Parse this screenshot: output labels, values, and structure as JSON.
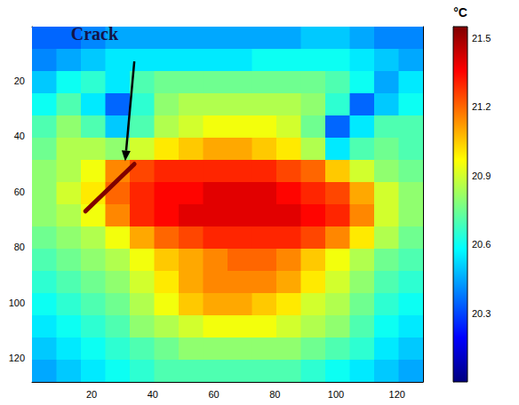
{
  "chart_data": {
    "type": "heatmap",
    "xlim": [
      0.5,
      128.5
    ],
    "xticks": [
      20,
      40,
      60,
      80,
      100,
      120
    ],
    "ylim": [
      128.5,
      0.5
    ],
    "yticks": [
      20,
      40,
      60,
      80,
      100,
      120
    ],
    "cells": {
      "x_edges": [
        0.5,
        8.5,
        16.5,
        24.5,
        32.5,
        40.5,
        48.5,
        56.5,
        64.5,
        72.5,
        80.5,
        88.5,
        96.5,
        104.5,
        112.5,
        120.5,
        128.5
      ],
      "y_edges": [
        0.5,
        8.5,
        16.5,
        24.5,
        32.5,
        40.5,
        48.5,
        56.5,
        64.5,
        72.5,
        80.5,
        88.5,
        96.5,
        104.5,
        112.5,
        120.5,
        128.5
      ],
      "values": [
        [
          20.35,
          20.35,
          20.4,
          20.45,
          20.45,
          20.45,
          20.45,
          20.45,
          20.45,
          20.45,
          20.45,
          20.5,
          20.5,
          20.45,
          20.4,
          20.4
        ],
        [
          20.4,
          20.45,
          20.5,
          20.55,
          20.55,
          20.55,
          20.55,
          20.55,
          20.55,
          20.6,
          20.6,
          20.6,
          20.6,
          20.55,
          20.5,
          20.45
        ],
        [
          20.5,
          20.6,
          20.65,
          20.55,
          20.7,
          20.75,
          20.75,
          20.75,
          20.75,
          20.75,
          20.75,
          20.75,
          20.7,
          20.6,
          20.45,
          20.55
        ],
        [
          20.6,
          20.7,
          20.55,
          20.35,
          20.65,
          20.8,
          20.85,
          20.85,
          20.85,
          20.85,
          20.85,
          20.8,
          20.65,
          20.35,
          20.5,
          20.6
        ],
        [
          20.7,
          20.8,
          20.7,
          20.5,
          20.7,
          20.85,
          20.9,
          20.95,
          20.95,
          20.95,
          20.9,
          20.75,
          20.35,
          20.55,
          20.7,
          20.7
        ],
        [
          20.75,
          20.85,
          20.85,
          20.8,
          20.9,
          21.0,
          21.05,
          21.1,
          21.1,
          21.05,
          21.0,
          20.85,
          20.55,
          20.7,
          20.75,
          20.7
        ],
        [
          20.8,
          20.85,
          20.95,
          21.15,
          21.25,
          21.3,
          21.3,
          21.3,
          21.3,
          21.3,
          21.25,
          21.2,
          21.05,
          20.9,
          20.8,
          20.75
        ],
        [
          20.8,
          20.9,
          21.0,
          21.2,
          21.3,
          21.35,
          21.35,
          21.4,
          21.4,
          21.4,
          21.35,
          21.3,
          21.25,
          21.1,
          20.9,
          20.8
        ],
        [
          20.8,
          20.85,
          20.95,
          21.15,
          21.3,
          21.35,
          21.4,
          21.4,
          21.4,
          21.4,
          21.4,
          21.35,
          21.3,
          21.15,
          20.9,
          20.8
        ],
        [
          20.75,
          20.8,
          20.85,
          20.95,
          21.1,
          21.2,
          21.25,
          21.3,
          21.3,
          21.3,
          21.3,
          21.25,
          21.15,
          21.0,
          20.85,
          20.75
        ],
        [
          20.7,
          20.75,
          20.8,
          20.85,
          20.95,
          21.05,
          21.1,
          21.15,
          21.2,
          21.2,
          21.15,
          21.05,
          20.95,
          20.85,
          20.75,
          20.7
        ],
        [
          20.65,
          20.7,
          20.75,
          20.8,
          20.9,
          21.0,
          21.1,
          21.15,
          21.15,
          21.15,
          21.1,
          21.0,
          20.9,
          20.8,
          20.7,
          20.65
        ],
        [
          20.6,
          20.65,
          20.7,
          20.75,
          20.85,
          20.95,
          21.05,
          21.1,
          21.1,
          21.05,
          21.0,
          20.9,
          20.85,
          20.75,
          20.65,
          20.6
        ],
        [
          20.55,
          20.6,
          20.65,
          20.7,
          20.8,
          20.85,
          20.9,
          20.95,
          20.95,
          20.95,
          20.9,
          20.85,
          20.8,
          20.7,
          20.6,
          20.55
        ],
        [
          20.5,
          20.55,
          20.6,
          20.65,
          20.7,
          20.75,
          20.8,
          20.8,
          20.8,
          20.8,
          20.8,
          20.75,
          20.7,
          20.65,
          20.55,
          20.5
        ],
        [
          20.45,
          20.5,
          20.55,
          20.6,
          20.65,
          20.7,
          20.7,
          20.7,
          20.7,
          20.7,
          20.7,
          20.65,
          20.6,
          20.55,
          20.5,
          20.45
        ]
      ]
    },
    "crack": {
      "x": [
        18,
        34
      ],
      "y": [
        67,
        50
      ],
      "value": 21.55
    },
    "colorbar": {
      "title": "°C",
      "range": [
        20.0,
        21.55
      ],
      "ticks": [
        20.3,
        20.6,
        20.9,
        21.2,
        21.5
      ]
    },
    "annotations": [
      {
        "text": "Crack",
        "x": 21,
        "y": 3,
        "arrow_from": [
          34,
          13
        ],
        "arrow_to": [
          31,
          49
        ]
      }
    ]
  }
}
